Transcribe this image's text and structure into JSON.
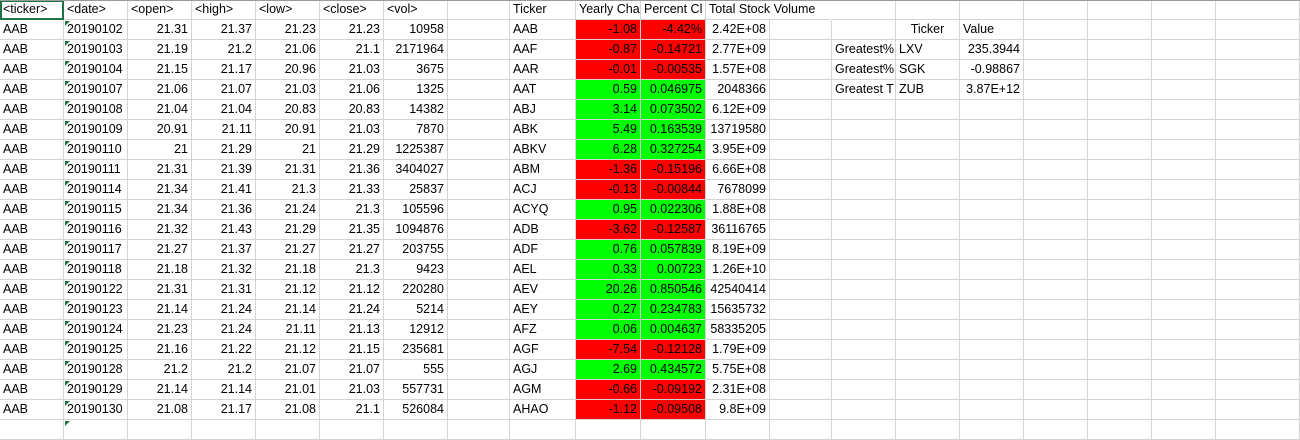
{
  "raw_table": {
    "headers": [
      "<ticker>",
      "<date>",
      "<open>",
      "<high>",
      "<low>",
      "<close>",
      "<vol>"
    ],
    "rows": [
      [
        "AAB",
        "20190102",
        "21.31",
        "21.37",
        "21.23",
        "21.23",
        "10958"
      ],
      [
        "AAB",
        "20190103",
        "21.19",
        "21.2",
        "21.06",
        "21.1",
        "2171964"
      ],
      [
        "AAB",
        "20190104",
        "21.15",
        "21.17",
        "20.96",
        "21.03",
        "3675"
      ],
      [
        "AAB",
        "20190107",
        "21.06",
        "21.07",
        "21.03",
        "21.06",
        "1325"
      ],
      [
        "AAB",
        "20190108",
        "21.04",
        "21.04",
        "20.83",
        "20.83",
        "14382"
      ],
      [
        "AAB",
        "20190109",
        "20.91",
        "21.11",
        "20.91",
        "21.03",
        "7870"
      ],
      [
        "AAB",
        "20190110",
        "21",
        "21.29",
        "21",
        "21.29",
        "1225387"
      ],
      [
        "AAB",
        "20190111",
        "21.31",
        "21.39",
        "21.31",
        "21.36",
        "3404027"
      ],
      [
        "AAB",
        "20190114",
        "21.34",
        "21.41",
        "21.3",
        "21.33",
        "25837"
      ],
      [
        "AAB",
        "20190115",
        "21.34",
        "21.36",
        "21.24",
        "21.3",
        "105596"
      ],
      [
        "AAB",
        "20190116",
        "21.32",
        "21.43",
        "21.29",
        "21.35",
        "1094876"
      ],
      [
        "AAB",
        "20190117",
        "21.27",
        "21.37",
        "21.27",
        "21.27",
        "203755"
      ],
      [
        "AAB",
        "20190118",
        "21.18",
        "21.32",
        "21.18",
        "21.3",
        "9423"
      ],
      [
        "AAB",
        "20190122",
        "21.31",
        "21.31",
        "21.12",
        "21.12",
        "220280"
      ],
      [
        "AAB",
        "20190123",
        "21.14",
        "21.24",
        "21.14",
        "21.24",
        "5214"
      ],
      [
        "AAB",
        "20190124",
        "21.23",
        "21.24",
        "21.11",
        "21.13",
        "12912"
      ],
      [
        "AAB",
        "20190125",
        "21.16",
        "21.22",
        "21.12",
        "21.15",
        "235681"
      ],
      [
        "AAB",
        "20190128",
        "21.2",
        "21.2",
        "21.07",
        "21.07",
        "555"
      ],
      [
        "AAB",
        "20190129",
        "21.14",
        "21.14",
        "21.01",
        "21.03",
        "557731"
      ],
      [
        "AAB",
        "20190130",
        "21.08",
        "21.17",
        "21.08",
        "21.1",
        "526084"
      ]
    ]
  },
  "summary_table": {
    "headers": [
      "Ticker",
      "Yearly Cha",
      "Percent Cl",
      "Total Stock Volume"
    ],
    "rows": [
      {
        "ticker": "AAB",
        "yearly": "-1.08",
        "percent": "-4.42%",
        "volume": "2.42E+08",
        "status": "negative"
      },
      {
        "ticker": "AAF",
        "yearly": "-0.87",
        "percent": "-0.14721",
        "volume": "2.77E+09",
        "status": "negative"
      },
      {
        "ticker": "AAR",
        "yearly": "-0.01",
        "percent": "-0.00535",
        "volume": "1.57E+08",
        "status": "negative"
      },
      {
        "ticker": "AAT",
        "yearly": "0.59",
        "percent": "0.046975",
        "volume": "2048366",
        "status": "positive"
      },
      {
        "ticker": "ABJ",
        "yearly": "3.14",
        "percent": "0.073502",
        "volume": "6.12E+09",
        "status": "positive"
      },
      {
        "ticker": "ABK",
        "yearly": "5.49",
        "percent": "0.163539",
        "volume": "13719580",
        "status": "positive"
      },
      {
        "ticker": "ABKV",
        "yearly": "6.28",
        "percent": "0.327254",
        "volume": "3.95E+09",
        "status": "positive"
      },
      {
        "ticker": "ABM",
        "yearly": "-1.36",
        "percent": "-0.15196",
        "volume": "6.66E+08",
        "status": "negative"
      },
      {
        "ticker": "ACJ",
        "yearly": "-0.13",
        "percent": "-0.00844",
        "volume": "7678099",
        "status": "negative"
      },
      {
        "ticker": "ACYQ",
        "yearly": "0.95",
        "percent": "0.022306",
        "volume": "1.88E+08",
        "status": "positive"
      },
      {
        "ticker": "ADB",
        "yearly": "-3.62",
        "percent": "-0.12587",
        "volume": "36116765",
        "status": "negative"
      },
      {
        "ticker": "ADF",
        "yearly": "0.76",
        "percent": "0.057839",
        "volume": "8.19E+09",
        "status": "positive"
      },
      {
        "ticker": "AEL",
        "yearly": "0.33",
        "percent": "0.00723",
        "volume": "1.26E+10",
        "status": "positive"
      },
      {
        "ticker": "AEV",
        "yearly": "20.26",
        "percent": "0.850546",
        "volume": "42540414",
        "status": "positive"
      },
      {
        "ticker": "AEY",
        "yearly": "0.27",
        "percent": "0.234783",
        "volume": "15635732",
        "status": "positive"
      },
      {
        "ticker": "AFZ",
        "yearly": "0.06",
        "percent": "0.004637",
        "volume": "58335205",
        "status": "positive"
      },
      {
        "ticker": "AGF",
        "yearly": "-7.54",
        "percent": "-0.12128",
        "volume": "1.79E+09",
        "status": "negative"
      },
      {
        "ticker": "AGJ",
        "yearly": "2.69",
        "percent": "0.434572",
        "volume": "5.75E+08",
        "status": "positive"
      },
      {
        "ticker": "AGM",
        "yearly": "-0.66",
        "percent": "-0.09192",
        "volume": "2.31E+08",
        "status": "negative"
      },
      {
        "ticker": "AHAO",
        "yearly": "-1.12",
        "percent": "-0.09508",
        "volume": "9.8E+09",
        "status": "negative"
      }
    ]
  },
  "greatest_table": {
    "headers": [
      "Ticker",
      "Value"
    ],
    "rows": [
      {
        "label": "Greatest%",
        "ticker": "LXV",
        "value": "235.3944"
      },
      {
        "label": "Greatest%",
        "ticker": "SGK",
        "value": "-0.98867"
      },
      {
        "label": "Greatest T",
        "ticker": "ZUB",
        "value": "3.87E+12"
      }
    ]
  },
  "colors": {
    "positive": "#00ff00",
    "negative": "#ff0000",
    "gridline": "#d4d4d4",
    "selection": "#217346",
    "error_triangle": "#1e7145"
  }
}
